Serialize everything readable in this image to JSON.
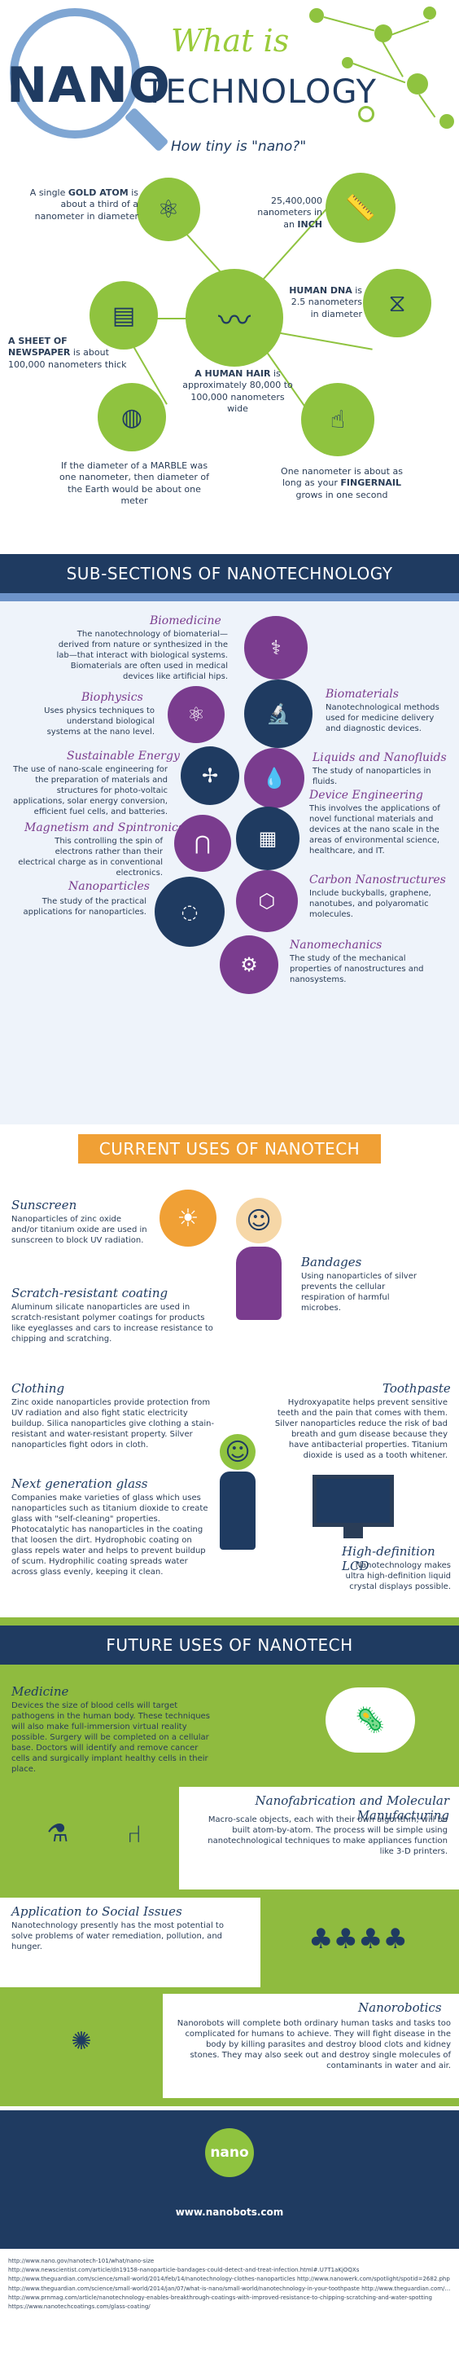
{
  "header": {
    "what_is": "What is",
    "nano": "NANO",
    "technology": "TECHNOLOGY",
    "how_tiny": "How tiny is \"nano?\""
  },
  "facts": {
    "gold_atom": [
      "A single ",
      "GOLD ATOM",
      " is about a third of a nanometer in diameter"
    ],
    "inch": [
      "25,400,000 nanometers in an ",
      "INCH"
    ],
    "dna": [
      "HUMAN DNA",
      " is 2.5 nanometers in diameter"
    ],
    "newspaper": [
      "A SHEET OF NEWSPAPER",
      " is about 100,000 nanometers thick"
    ],
    "hair": [
      "A HUMAN HAIR",
      " is approximately 80,000 to 100,000 nanometers wide"
    ],
    "marble": "If the diameter of a MARBLE was one nanometer, then diameter of the Earth would be about one meter",
    "fingernail": [
      "One nanometer is about as long as your ",
      "FINGERNAIL",
      " grows in one second"
    ]
  },
  "subsections": {
    "banner": "SUB-SECTIONS OF NANOTECHNOLOGY",
    "items": [
      {
        "title": "Biomedicine",
        "text": "The nanotechnology of biomaterial—derived from nature or synthesized in the lab—that interact with biological systems. Biomaterials are often used in medical devices like artificial hips."
      },
      {
        "title": "Biomaterials",
        "text": "Nanotechnological methods used for medicine delivery and diagnostic devices."
      },
      {
        "title": "Biophysics",
        "text": "Uses physics techniques to understand biological systems at the nano level."
      },
      {
        "title": "Liquids and Nanofluids",
        "text": "The study of nanoparticles in fluids."
      },
      {
        "title": "Sustainable Energy",
        "text": "The use of nano-scale engineering for the preparation of materials and structures for photo-voltaic applications, solar energy conversion, efficient fuel cells, and batteries."
      },
      {
        "title": "Device Engineering",
        "text": "This involves the applications of novel functional materials and devices at the nano scale in the areas of environmental science, healthcare, and IT."
      },
      {
        "title": "Magnetism and Spintronics",
        "text": "This controlling the spin of electrons rather than their electrical charge as in conventional electronics."
      },
      {
        "title": "Carbon Nanostructures",
        "text": "Include buckyballs, graphene, nanotubes, and polyaromatic molecules."
      },
      {
        "title": "Nanoparticles",
        "text": "The study of the practical applications for nanoparticles."
      },
      {
        "title": "Nanomechanics",
        "text": "The study of the mechanical properties of nanostructures and nanosystems."
      }
    ]
  },
  "current": {
    "banner": "CURRENT USES OF NANOTECH",
    "items": [
      {
        "title": "Sunscreen",
        "text": "Nanoparticles of zinc oxide and/or titanium oxide are used in sunscreen to block UV radiation."
      },
      {
        "title": "Bandages",
        "text": "Using nanoparticles of silver prevents the cellular respiration of harmful microbes."
      },
      {
        "title": "Scratch-resistant coating",
        "text": "Aluminum silicate nanoparticles are used in scratch-resistant polymer coatings for products like eyeglasses and cars to increase resistance to chipping and scratching."
      },
      {
        "title": "Clothing",
        "text": "Zinc oxide nanoparticles provide protection from UV radiation and also fight static electricity buildup. Silica nanoparticles give clothing a stain-resistant and water-resistant property. Silver nanoparticles fight odors in cloth."
      },
      {
        "title": "Toothpaste",
        "text": "Hydroxyapatite helps prevent sensitive teeth and the pain that comes with them. Silver nanoparticles reduce the risk of bad breath and gum disease because they have antibacterial properties. Titanium dioxide is used as a tooth whitener."
      },
      {
        "title": "Next generation glass",
        "text": "Companies make varieties of glass which uses nanoparticles such as titanium dioxide to create glass with \"self-cleaning\" properties. Photocatalytic has nanoparticles in the coating that loosen the dirt. Hydrophobic coating on glass repels water and helps to prevent buildup of scum. Hydrophilic coating spreads water across glass evenly, keeping it clean."
      },
      {
        "title": "High-definition LCD",
        "text": "Nanotechnology makes ultra high-definition liquid crystal displays possible."
      }
    ]
  },
  "future": {
    "banner": "FUTURE USES OF NANOTECH",
    "items": [
      {
        "title": "Medicine",
        "text": "Devices the size of blood cells will target pathogens in the human body. These techniques will also make full-immersion virtual reality possible. Surgery will be completed on a cellular base. Doctors will identify and remove cancer cells and surgically implant healthy cells in their place."
      },
      {
        "title": "Nanofabrication and Molecular Manufacturing",
        "text": "Macro-scale objects, each with their own algorithm, will be built atom-by-atom. The process will be simple using nanotechnological techniques to make appliances function like 3-D printers."
      },
      {
        "title": "Application to Social Issues",
        "text": "Nanotechnology presently has the most potential to solve problems of water remediation, pollution, and hunger."
      },
      {
        "title": "Nanorobotics",
        "text": "Nanorobots will complete both ordinary human tasks and tasks too complicated for humans to achieve. They will fight disease in the body by killing parasites and destroy blood clots and kidney stones. They may also seek out and destroy single molecules of contaminants in water and air."
      }
    ]
  },
  "footer": {
    "logo": "nano",
    "site": "www.nanobots.com"
  },
  "references": [
    "http://www.nano.gov/nanotech-101/what/nano-size",
    "http://www.newscientist.com/article/dn19158-nanoparticle-bandages-could-detect-and-treat-infection.html#.U7T1aKjOQXs",
    "http://www.theguardian.com/science/small-world/2014/feb/14/nanotechnology-clothes-nanoparticles http://www.nanowerk.com/spotlight/spotid=2682.php",
    "http://www.theguardian.com/science/small-world/2014/jan/07/what-is-nano/small-world/nanotechnology-in-your-toothpaste http://www.theguardian.com/science/small-world/2014/mar/13/nanotechnology-sunscreen-skin-cancer",
    "http://www.prnmag.com/article/nanotechnology-enables-breakthrough-coatings-with-improved-resistance-to-chipping-scratching-and-water-spotting",
    "https://www.nanotechcoatings.com/glass-coating/"
  ],
  "colors": {
    "navy": "#1f3b61",
    "green": "#8fc33f",
    "purple": "#7a3c8e",
    "orange": "#f0a035",
    "sky": "#6d93c9"
  }
}
